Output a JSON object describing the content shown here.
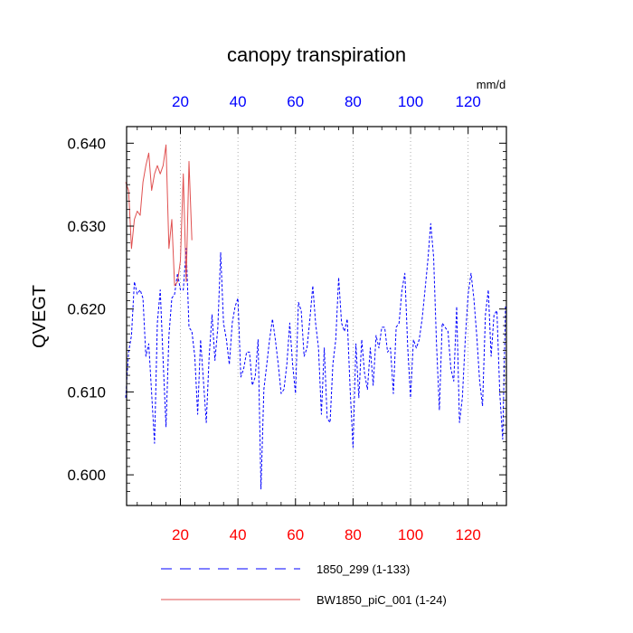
{
  "chart_data": {
    "type": "line",
    "title": "canopy transpiration",
    "ylabel": "QVEGT",
    "unit_label": "mm/d",
    "xlim": [
      1,
      133
    ],
    "ylim": [
      0.596,
      0.642
    ],
    "x_ticks": [
      20,
      40,
      60,
      80,
      100,
      120
    ],
    "y_ticks": [
      0.6,
      0.61,
      0.62,
      0.63,
      0.64
    ],
    "y_tick_labels": [
      "0.600",
      "0.610",
      "0.620",
      "0.630",
      "0.640"
    ],
    "bottom_tick_color": "#ff0000",
    "top_tick_color": "#0000ff",
    "grid": "vertical dotted at x ticks",
    "series": [
      {
        "name": "1850_299 (1-133)",
        "color": "#0000ff",
        "dash": "dashed",
        "x_start": 1,
        "values": [
          0.6093,
          0.6148,
          0.6168,
          0.6233,
          0.6218,
          0.6223,
          0.6213,
          0.6143,
          0.6158,
          0.6098,
          0.6038,
          0.6183,
          0.6223,
          0.6138,
          0.6058,
          0.6168,
          0.6213,
          0.6218,
          0.6243,
          0.6223,
          0.6223,
          0.6273,
          0.6178,
          0.6173,
          0.6143,
          0.6073,
          0.6163,
          0.6113,
          0.6063,
          0.6143,
          0.6193,
          0.6138,
          0.6178,
          0.6268,
          0.6183,
          0.6163,
          0.6133,
          0.6183,
          0.6203,
          0.6213,
          0.6118,
          0.6128,
          0.6148,
          0.6148,
          0.6108,
          0.6118,
          0.6163,
          0.5983,
          0.6103,
          0.6133,
          0.6163,
          0.6188,
          0.6163,
          0.6133,
          0.6098,
          0.6103,
          0.6133,
          0.6183,
          0.6133,
          0.6098,
          0.6208,
          0.6198,
          0.6143,
          0.6153,
          0.6188,
          0.6228,
          0.6183,
          0.6153,
          0.6073,
          0.6153,
          0.6068,
          0.6063,
          0.6133,
          0.6163,
          0.6238,
          0.6183,
          0.6173,
          0.6188,
          0.6103,
          0.6033,
          0.6158,
          0.6093,
          0.6163,
          0.6123,
          0.6103,
          0.6153,
          0.6108,
          0.6168,
          0.6153,
          0.6178,
          0.6178,
          0.6148,
          0.6153,
          0.6098,
          0.6178,
          0.6183,
          0.6223,
          0.6243,
          0.6153,
          0.6093,
          0.6163,
          0.6153,
          0.6163,
          0.6188,
          0.6223,
          0.6258,
          0.6303,
          0.6263,
          0.6158,
          0.6078,
          0.6183,
          0.6178,
          0.6173,
          0.6128,
          0.6113,
          0.6203,
          0.6063,
          0.6093,
          0.6163,
          0.6218,
          0.6243,
          0.6213,
          0.6168,
          0.6113,
          0.6083,
          0.6193,
          0.6223,
          0.6143,
          0.6193,
          0.6198,
          0.6098,
          0.6043,
          0.6203
        ]
      },
      {
        "name": "BW1850_piC_001 (1-24)",
        "color": "#e05050",
        "dash": "solid",
        "x_start": 1,
        "values": [
          0.6353,
          0.6343,
          0.6273,
          0.6308,
          0.6318,
          0.6313,
          0.6353,
          0.6373,
          0.6388,
          0.6343,
          0.6363,
          0.6373,
          0.6363,
          0.6373,
          0.6398,
          0.6273,
          0.6308,
          0.6228,
          0.6233,
          0.6258,
          0.6363,
          0.6233,
          0.6378,
          0.6283
        ]
      }
    ],
    "legend": {
      "position": "bottom",
      "entries": [
        "1850_299 (1-133)",
        "BW1850_piC_001 (1-24)"
      ]
    }
  }
}
